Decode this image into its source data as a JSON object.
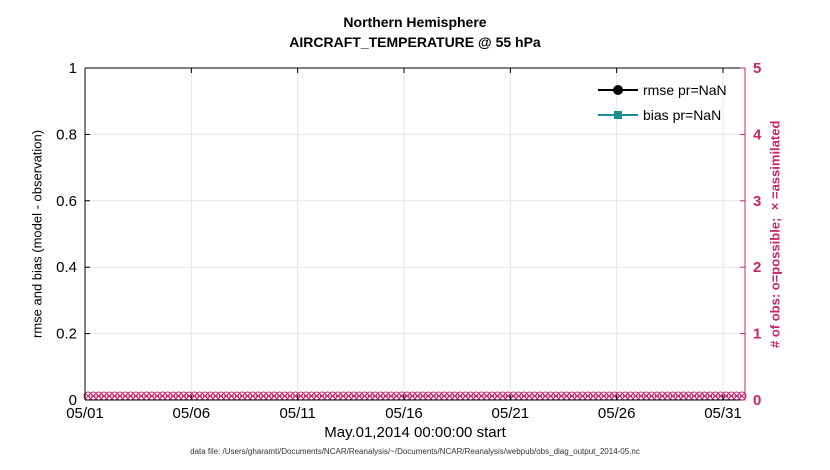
{
  "figure": {
    "title_line1": "Northern Hemisphere",
    "title_line2": "AIRCRAFT_TEMPERATURE @ 55 hPa",
    "caption": "data file: /Users/gharamti/Documents/NCAR/Reanalysis/~/Documents/NCAR/Reanalysis/webpub/obs_diag_output_2014-05.nc"
  },
  "chart_data": {
    "type": "line",
    "title": "Northern Hemisphere",
    "subtitle": "AIRCRAFT_TEMPERATURE @ 55 hPa",
    "xlabel": "May.01,2014 00:00:00 start",
    "ylabel_left": "rmse and bias (model - observation)",
    "ylabel_right": "# of obs: o=possible; ×=assimilated",
    "x_tick_labels": [
      "05/01",
      "05/06",
      "05/11",
      "05/16",
      "05/21",
      "05/26",
      "05/31"
    ],
    "ylim_left": [
      0,
      1
    ],
    "y_left_ticks": [
      0,
      0.2,
      0.4,
      0.6,
      0.8,
      1
    ],
    "ylim_right": [
      0,
      5
    ],
    "y_right_ticks": [
      0,
      1,
      2,
      3,
      4,
      5
    ],
    "grid": true,
    "legend_position": "top-right-inside",
    "series": [
      {
        "name": "rmse pr=NaN",
        "color": "#000000",
        "marker": "circle",
        "values": []
      },
      {
        "name": "bias pr=NaN",
        "color": "#1A8F8F",
        "marker": "square",
        "values": []
      }
    ],
    "observations": {
      "value": 0,
      "marker_count": 124,
      "markers": [
        "o",
        "x"
      ],
      "color": "#C8256E"
    }
  },
  "colors": {
    "rmse": "#000000",
    "bias": "#1A8F8F",
    "obs_axis": "#C8256E",
    "grid": "#E6E6E6",
    "axis": "#000000"
  }
}
